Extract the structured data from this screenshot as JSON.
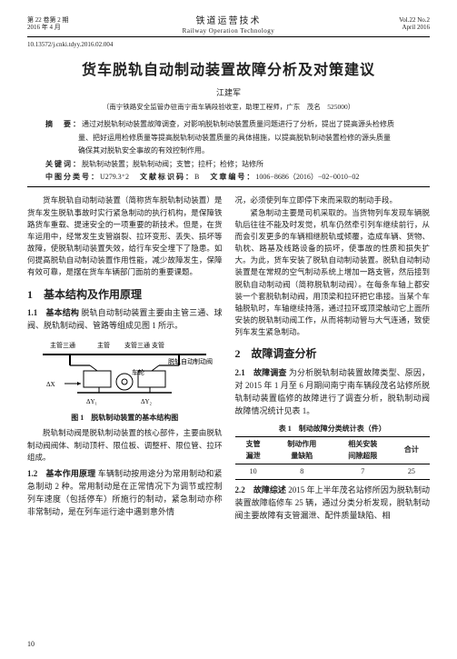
{
  "header": {
    "volIssueCn": "第 22 卷第 2 期",
    "dateCn": "2016 年 4 月",
    "journalCn": "铁道运营技术",
    "journalEn": "Railway Operation Technology",
    "volIssueEn": "Vol.22 No.2",
    "dateEn": "April 2016",
    "doi": "10.13572/j.cnki.tdyy.2016.02.004"
  },
  "title": "货车脱轨自动制动装置故障分析及对策建议",
  "author": "江建军",
  "affiliation": "（南宁铁路安全监管办驻南宁南车辆段验收室，助理工程师，广东　茂名　525000）",
  "abstract": {
    "label": "摘　要：",
    "text1": "通过对脱轨制动装置故障调查，对影响脱轨制动装置质量问题进行了分析，提出了提高源头检修质",
    "text2": "量、把好运用检修质量等提高脱轨制动装置质量的具体措施，以提高脱轨制动装置检修的源头质量",
    "text3": "确保其对脱轨安全事故的有效控制作用。"
  },
  "keywords": {
    "label": "关键词：",
    "text": "脱轨制动装置；脱轨制动阀；支管；拉杆；检修；站修所"
  },
  "clc": {
    "label": "中图分类号：",
    "value": "U279.3⁺2"
  },
  "docCode": {
    "label": "文献标识码：",
    "value": "B"
  },
  "artNo": {
    "label": "文章编号：",
    "value": "1006−8686（2016）−02−0010−02"
  },
  "left": {
    "intro": "货车脱轨自动制动装置（简称货车脱轨制动装置）是货车发生脱轨事故时实行紧急制动的执行机构，是保障铁路货车重载、提速安全的一项重要的新技术。但是，在货车运用中，经常发生支管崩裂、拉环变形、丢失、损坏等故障，使脱轨制动装置失效，给行车安全埋下了隐患。如何提高脱轨自动制动装置作用性能，减少故障发生，保障有效可靠，是摆在货车车辆部门面前的重要课题。",
    "s1_title": "1　基本结构及作用原理",
    "s11_title": "1.1　基本结构",
    "s11_body": "脱轨自动制动装置主要由主管三通、球阀、脱轨制动阀、管路等组成见图 1 所示。",
    "fig_labels": {
      "a": "主管三通",
      "b": "主管",
      "c": "支管三通",
      "d": "支管",
      "e": "脱轨自动制动阀",
      "f": "车轮",
      "dy1": "ΔY₁",
      "dy2": "ΔY₂",
      "dx": "ΔX"
    },
    "fig_caption": "图 1　脱轨制动装置的基本结构图",
    "s11_after": "脱轨制动阀是脱轨制动装置的核心部件，主要由脱轨制动阀阀体、制动顶杆、限位板、调整杆、限位管、拉环组成。",
    "s12_title": "1.2　基本作用原理",
    "s12_body": "车辆制动按用途分为常用制动和紧急制动 2 种。常用制动是在正常情况下为调节或控制列车速度（包括停车）所施行的制动，紧急制动亦称非常制动，是在列车运行途中遇到意外情"
  },
  "right": {
    "introCont": "况，必须使列车立即停下来而采取的制动手段。",
    "p2": "紧急制动主要是司机采取的。当货物列车发现车辆脱轨后往往不能及时发觉，机车仍然牵引列车继续前行，从而会引发更多的车辆相继脱轨或倾覆，造成车辆、货物、轨枕、路基及线路设备的损坏，使事故的性质和损失扩大。为此，货车安装了脱轨自动制动装置。脱轨自动制动装置是在常规的空气制动系统上增加一路支管，然后接到脱轨自动制动阀（简称脱轨制动阀）。在每条车轴上都安装一个套脱轨制动阀，用顶梁和拉环把它串接。当某个车轴脱轨时，车轴继续持落，通过拉环或顶梁触动它上面所安装的脱轨制动阀工作，从而将制动管与大气连通，致使列车发生紧急制动。",
    "s2_title": "2　故障调查分析",
    "s21_title": "2.1　故障调查",
    "s21_body": "为分析脱轨制动装置故障类型、原因，对 2015 年 1 月至 6 月期间南宁南车辆段茂名站修所脱轨制动装置临修的故障进行了调查分析，脱轨制动阀故障情况统计见表 1。",
    "table_caption": "表 1　制动故障分类统计表（件）",
    "table": {
      "columns": [
        "支管\n漏泄",
        "制动作用\n量缺陷",
        "相关安装\n间隙超限",
        "合计"
      ],
      "row": [
        "10",
        "8",
        "7",
        "25"
      ]
    },
    "s22_title": "2.2　故障综述",
    "s22_body": "2015 年上半年茂名站修所因为脱轨制动装置故障临修车 25 辆，通过分类分析发现，脱轨制动阀主要故障有支管漏泄、配件质量缺陷、相"
  },
  "pageNum": "10"
}
